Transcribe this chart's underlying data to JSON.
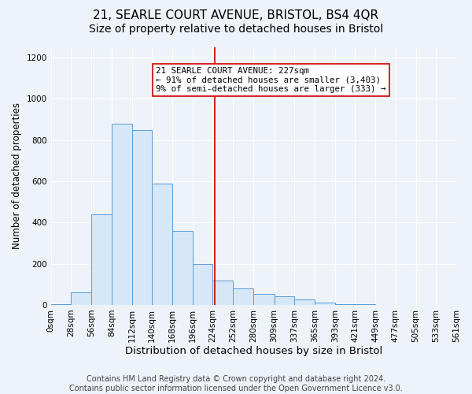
{
  "title": "21, SEARLE COURT AVENUE, BRISTOL, BS4 4QR",
  "subtitle": "Size of property relative to detached houses in Bristol",
  "xlabel": "Distribution of detached houses by size in Bristol",
  "ylabel": "Number of detached properties",
  "bin_edges": [
    0,
    28,
    56,
    84,
    112,
    140,
    168,
    196,
    224,
    252,
    280,
    309,
    337,
    365,
    393,
    421,
    449,
    477,
    505,
    533,
    561
  ],
  "counts": [
    5,
    60,
    440,
    880,
    850,
    590,
    360,
    200,
    120,
    80,
    55,
    40,
    25,
    12,
    5,
    3,
    1,
    1,
    0,
    0
  ],
  "bar_facecolor": "#d6e8f7",
  "bar_edgecolor": "#5b9bd5",
  "property_size": 227,
  "vline_color": "#cc0000",
  "annotation_text": "21 SEARLE COURT AVENUE: 227sqm\n← 91% of detached houses are smaller (3,403)\n9% of semi-detached houses are larger (333) →",
  "annotation_box_color": "#ffffff",
  "annotation_border_color": "#cc0000",
  "footer_text": "Contains HM Land Registry data © Crown copyright and database right 2024.\nContains public sector information licensed under the Open Government Licence v3.0.",
  "title_fontsize": 11,
  "subtitle_fontsize": 10,
  "xlabel_fontsize": 9.5,
  "ylabel_fontsize": 8.5,
  "annotation_fontsize": 7.8,
  "footer_fontsize": 7,
  "ylim": [
    0,
    1250
  ],
  "yticks": [
    0,
    200,
    400,
    600,
    800,
    1000,
    1200
  ],
  "background_color": "#eef2f9",
  "plot_background_color": "#eef2f9",
  "grid_color": "#ffffff",
  "tick_label_size": 7.5
}
